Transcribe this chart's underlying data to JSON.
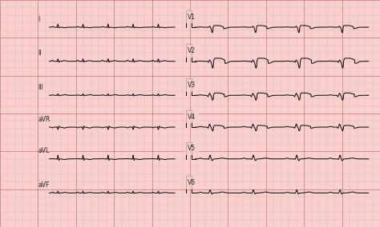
{
  "bg_color": "#f8d0d0",
  "grid_minor_color": "#e8a8a8",
  "grid_major_color": "#d07070",
  "trace_color": "#111111",
  "label_color": "#222222",
  "fig_width": 4.74,
  "fig_height": 2.84,
  "dpi": 100,
  "leads_left": [
    "I",
    "II",
    "III",
    "aVR",
    "aVL",
    "aVF"
  ],
  "leads_right": [
    "V1",
    "V2",
    "V3",
    "V4",
    "V5",
    "V6"
  ],
  "trace_lw": 0.75,
  "label_fontsize": 5.5
}
